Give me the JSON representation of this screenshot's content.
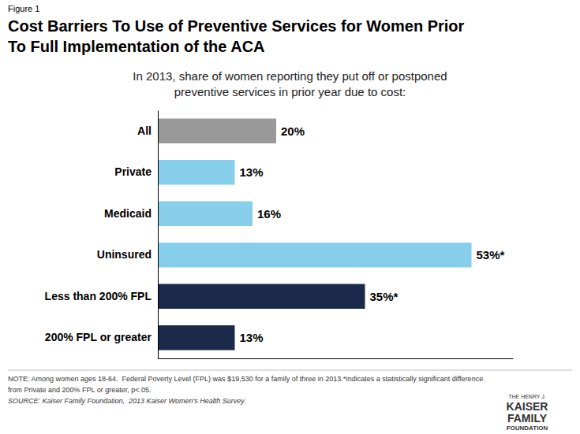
{
  "chart_data": {
    "type": "bar",
    "orientation": "horizontal",
    "title": [
      "Cost Barriers To Use of Preventive Services for Women Prior",
      "To Full Implementation of the ACA"
    ],
    "subtitle": [
      "In 2013, share of women reporting they put off or postponed",
      "preventive services in prior year due to cost:"
    ],
    "categories": [
      "All",
      "Private",
      "Medicaid",
      "Uninsured",
      "Less than 200% FPL",
      "200% FPL or greater"
    ],
    "values": [
      20,
      13,
      16,
      53,
      35,
      13
    ],
    "value_labels": [
      "20%",
      "13%",
      "16%",
      "53%*",
      "35%*",
      "13%"
    ],
    "colors": [
      "#999999",
      "#87CEEB",
      "#87CEEB",
      "#87CEEB",
      "#1B2A4A",
      "#1B2A4A"
    ],
    "xlim": [
      0,
      60
    ],
    "data_labels": true,
    "tick_labels": "y",
    "annotations": [
      "Figure 1",
      "NOTE: Among women ages 18-64.  Federal Poverty Level (FPL) was $19,530 for a family of three in 2013.*Indicates a statistically significant difference",
      "from Private and 200% FPL or greater, p<.05.",
      "SOURCE: Kaiser Family Foundation,  2013 Kaiser Women's Health Survey.",
      "THE HENRY J.",
      "KAISER",
      "FAMILY",
      "FOUNDATION"
    ]
  }
}
